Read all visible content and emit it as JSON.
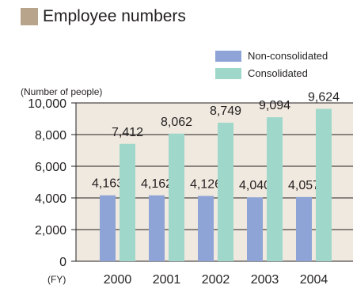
{
  "header": {
    "title": "Employee numbers",
    "swatch_color": "#b8a48a"
  },
  "chart_data": {
    "type": "bar",
    "title": "Employee numbers",
    "ylabel": "(Number of people)",
    "xlabel": "(FY)",
    "categories": [
      "2000",
      "2001",
      "2002",
      "2003",
      "2004"
    ],
    "ylim": [
      0,
      10000
    ],
    "yticks": [
      "0",
      "2,000",
      "4,000",
      "6,000",
      "8,000",
      "10,000"
    ],
    "ytick_values": [
      0,
      2000,
      4000,
      6000,
      8000,
      10000
    ],
    "grid": true,
    "legend_position": "top-right",
    "series": [
      {
        "name": "Non-consolidated",
        "color": "#8fa4d6",
        "values": [
          4163,
          4162,
          4126,
          4040,
          4057
        ],
        "labels": [
          "4,163",
          "4,162",
          "4,126",
          "4,040",
          "4,057"
        ]
      },
      {
        "name": "Consolidated",
        "color": "#9fd8cb",
        "values": [
          7412,
          8062,
          8749,
          9094,
          9624
        ],
        "labels": [
          "7,412",
          "8,062",
          "8,749",
          "9,094",
          "9,624"
        ]
      }
    ],
    "plot_background": "#efe9df"
  }
}
